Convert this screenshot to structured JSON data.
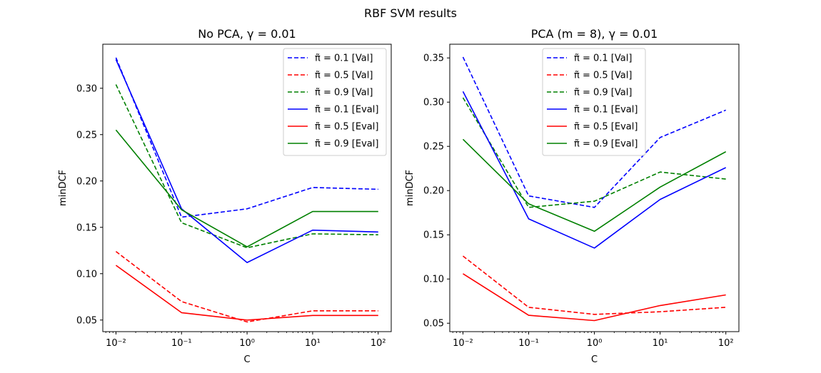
{
  "figure": {
    "suptitle": "RBF SVM results"
  },
  "chart_data": [
    {
      "type": "line",
      "title": "No PCA, γ = 0.01",
      "xlabel": "C",
      "ylabel": "minDCF",
      "xscale": "log",
      "xlim": [
        0.0063,
        158
      ],
      "ylim": [
        0.0375,
        0.3475
      ],
      "x": [
        0.01,
        0.1,
        1,
        10,
        100
      ],
      "xtick_labels": [
        "10⁻²",
        "10⁻¹",
        "10⁰",
        "10¹",
        "10²"
      ],
      "yticks": [
        0.05,
        0.1,
        0.15,
        0.2,
        0.25,
        0.3
      ],
      "ytick_labels": [
        "0.05",
        "0.10",
        "0.15",
        "0.20",
        "0.25",
        "0.30"
      ],
      "grid": false,
      "legend_position": "upper-right",
      "series": [
        {
          "name": "π̃ = 0.1 [Val]",
          "color": "#0000ff",
          "style": "dashed",
          "values": [
            0.333,
            0.161,
            0.17,
            0.193,
            0.191
          ]
        },
        {
          "name": "π̃ = 0.5 [Val]",
          "color": "#ff0000",
          "style": "dashed",
          "values": [
            0.124,
            0.07,
            0.048,
            0.06,
            0.06
          ]
        },
        {
          "name": "π̃ = 0.9 [Val]",
          "color": "#008000",
          "style": "dashed",
          "values": [
            0.304,
            0.155,
            0.128,
            0.143,
            0.142
          ]
        },
        {
          "name": "π̃ = 0.1 [Eval]",
          "color": "#0000ff",
          "style": "solid",
          "values": [
            0.331,
            0.17,
            0.112,
            0.147,
            0.145
          ]
        },
        {
          "name": "π̃ = 0.5 [Eval]",
          "color": "#ff0000",
          "style": "solid",
          "values": [
            0.109,
            0.058,
            0.05,
            0.055,
            0.055
          ]
        },
        {
          "name": "π̃ = 0.9 [Eval]",
          "color": "#008000",
          "style": "solid",
          "values": [
            0.255,
            0.169,
            0.129,
            0.167,
            0.167
          ]
        }
      ]
    },
    {
      "type": "line",
      "title": "PCA (m = 8), γ = 0.01",
      "xlabel": "C",
      "ylabel": "minDCF",
      "xscale": "log",
      "xlim": [
        0.0063,
        158
      ],
      "ylim": [
        0.0405,
        0.3655
      ],
      "x": [
        0.01,
        0.1,
        1,
        10,
        100
      ],
      "xtick_labels": [
        "10⁻²",
        "10⁻¹",
        "10⁰",
        "10¹",
        "10²"
      ],
      "yticks": [
        0.05,
        0.1,
        0.15,
        0.2,
        0.25,
        0.3,
        0.35
      ],
      "ytick_labels": [
        "0.05",
        "0.10",
        "0.15",
        "0.20",
        "0.25",
        "0.30",
        "0.35"
      ],
      "grid": false,
      "legend_position": "upper-center",
      "series": [
        {
          "name": "π̃ = 0.1 [Val]",
          "color": "#0000ff",
          "style": "dashed",
          "values": [
            0.351,
            0.194,
            0.181,
            0.26,
            0.291
          ]
        },
        {
          "name": "π̃ = 0.5 [Val]",
          "color": "#ff0000",
          "style": "dashed",
          "values": [
            0.126,
            0.068,
            0.06,
            0.063,
            0.068
          ]
        },
        {
          "name": "π̃ = 0.9 [Val]",
          "color": "#008000",
          "style": "dashed",
          "values": [
            0.305,
            0.181,
            0.188,
            0.221,
            0.213
          ]
        },
        {
          "name": "π̃ = 0.1 [Eval]",
          "color": "#0000ff",
          "style": "solid",
          "values": [
            0.312,
            0.168,
            0.135,
            0.19,
            0.226
          ]
        },
        {
          "name": "π̃ = 0.5 [Eval]",
          "color": "#ff0000",
          "style": "solid",
          "values": [
            0.106,
            0.059,
            0.053,
            0.07,
            0.082
          ]
        },
        {
          "name": "π̃ = 0.9 [Eval]",
          "color": "#008000",
          "style": "solid",
          "values": [
            0.258,
            0.185,
            0.154,
            0.204,
            0.244
          ]
        }
      ]
    }
  ]
}
